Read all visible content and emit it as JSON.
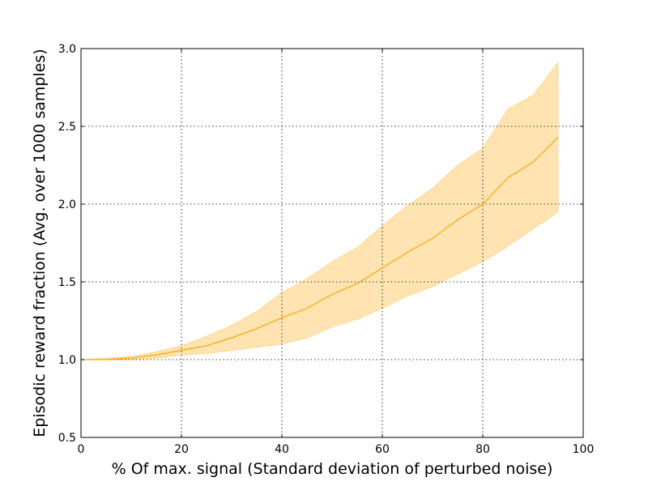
{
  "chart_data": {
    "type": "line",
    "title": "",
    "xlabel": "% Of max. signal (Standard deviation of perturbed noise)",
    "ylabel": "Episodic reward fraction (Avg. over 1000 samples)",
    "xlim": [
      0,
      100
    ],
    "ylim": [
      0.5,
      3.0
    ],
    "xticks": [
      0,
      20,
      40,
      60,
      80,
      100
    ],
    "xtick_labels": [
      "0",
      "20",
      "40",
      "60",
      "80",
      "100"
    ],
    "yticks": [
      0.5,
      1.0,
      1.5,
      2.0,
      2.5,
      3.0
    ],
    "ytick_labels": [
      "0.5",
      "1.0",
      "1.5",
      "2.0",
      "2.5",
      "3.0"
    ],
    "grid": true,
    "colors": {
      "line": "#ffa500",
      "band": "#ffa500",
      "grid": "#000000",
      "axes": "#000000"
    },
    "x": [
      0,
      5,
      10,
      15,
      20,
      25,
      30,
      35,
      40,
      45,
      50,
      55,
      60,
      65,
      70,
      75,
      80,
      85,
      90,
      95
    ],
    "series": [
      {
        "values": [
          1.0,
          1.0,
          1.01,
          1.03,
          1.06,
          1.09,
          1.14,
          1.2,
          1.27,
          1.33,
          1.42,
          1.49,
          1.59,
          1.69,
          1.78,
          1.9,
          2.0,
          2.17,
          2.27,
          2.43
        ],
        "lower": [
          1.0,
          1.0,
          1.0,
          1.01,
          1.03,
          1.04,
          1.06,
          1.08,
          1.1,
          1.14,
          1.21,
          1.26,
          1.33,
          1.41,
          1.47,
          1.55,
          1.63,
          1.73,
          1.84,
          1.95
        ],
        "upper": [
          1.0,
          1.01,
          1.02,
          1.05,
          1.09,
          1.15,
          1.22,
          1.31,
          1.43,
          1.52,
          1.63,
          1.72,
          1.86,
          1.99,
          2.1,
          2.25,
          2.36,
          2.61,
          2.7,
          2.91
        ]
      }
    ]
  }
}
